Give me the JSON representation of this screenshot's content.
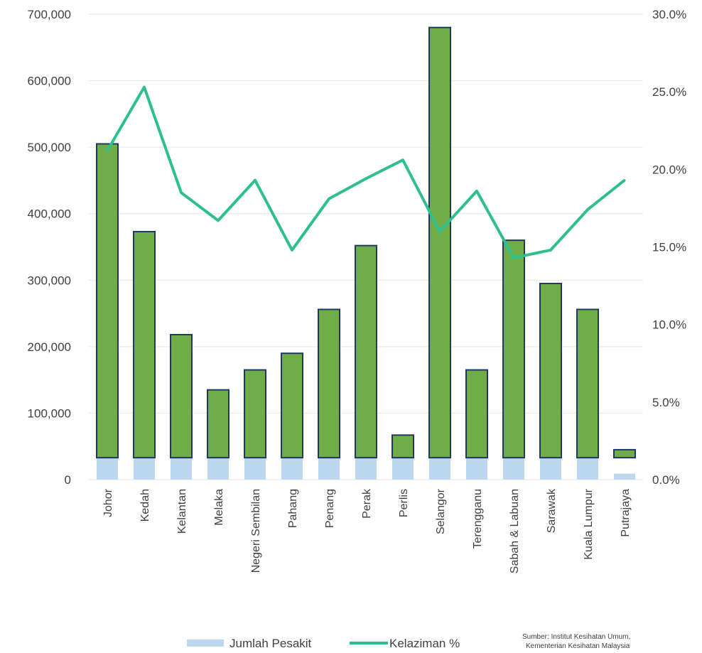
{
  "chart_data": {
    "type": "bar",
    "categories": [
      "Johor",
      "Kedah",
      "Kelantan",
      "Melaka",
      "Negeri Sembilan",
      "Pahang",
      "Penang",
      "Perak",
      "Perlis",
      "Selangor",
      "Terengganu",
      "Sabah & Labuan",
      "Sarawak",
      "Kuala Lumpur",
      "Putrajaya"
    ],
    "series": [
      {
        "name": "Jumlah Pesakit",
        "type": "bar",
        "axis": "left",
        "color": "#bdd7ee",
        "values": [
          33000,
          33000,
          33000,
          33000,
          33000,
          33000,
          33000,
          33000,
          33000,
          33000,
          33000,
          33000,
          33000,
          33000,
          9000
        ]
      },
      {
        "name": "",
        "type": "bar",
        "axis": "left",
        "color": "#70ad47",
        "edge_color": "#203864",
        "values": [
          505000,
          373000,
          218000,
          135000,
          165000,
          190000,
          256000,
          352000,
          67000,
          680000,
          165000,
          360000,
          295000,
          256000,
          45000
        ]
      },
      {
        "name": "Kelaziman %",
        "type": "line",
        "axis": "right",
        "color": "#2fbf8f",
        "values": [
          21.2,
          25.3,
          18.5,
          16.7,
          19.3,
          14.8,
          18.1,
          19.4,
          20.6,
          16.0,
          18.6,
          14.3,
          14.8,
          17.4,
          19.3
        ]
      }
    ],
    "y_left": {
      "ylim": [
        0,
        700000
      ],
      "ticks": [
        "0",
        "100,000",
        "200,000",
        "300,000",
        "400,000",
        "500,000",
        "600,000",
        "700,000"
      ]
    },
    "y_right": {
      "ylim": [
        0,
        30
      ],
      "ticks": [
        "0.0%",
        "5.0%",
        "10.0%",
        "15.0%",
        "20.0%",
        "25.0%",
        "30.0%"
      ]
    },
    "grid": true,
    "legend": {
      "position": "bottom",
      "items": [
        "Jumlah Pesakit",
        "Kelaziman %"
      ]
    },
    "source": [
      "Sumber: Institut Kesihatan Umum,",
      "Kementerian Kesihatan Malaysia"
    ]
  }
}
